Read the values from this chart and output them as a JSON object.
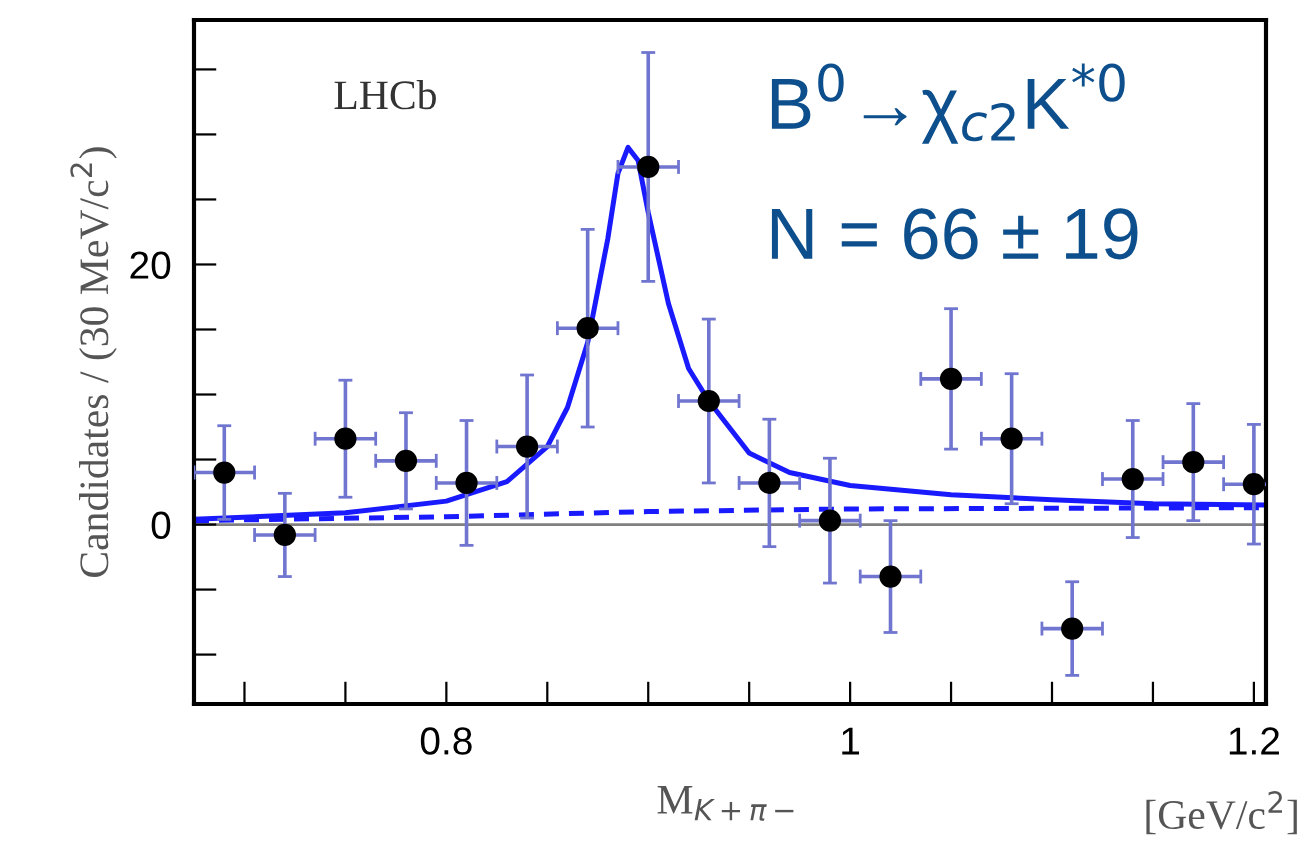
{
  "chart_data": {
    "type": "scatter",
    "xlabel": "M$_{K+π−}$",
    "ylabel": "Candidates / (30 MeV/c$^{2}$)",
    "xlim": [
      0.675,
      1.206
    ],
    "ylim": [
      -13.8,
      38.8
    ],
    "xticks": [
      {
        "value": 0.7,
        "label": null
      },
      {
        "value": 0.75,
        "label": null
      },
      0.8,
      {
        "value": 0.85,
        "label": null
      },
      {
        "value": 0.9,
        "label": null
      },
      {
        "value": 0.95,
        "label": null
      },
      1,
      {
        "value": 1.05,
        "label": null
      },
      {
        "value": 1.1,
        "label": null
      },
      {
        "value": 1.15,
        "label": null
      },
      1.2
    ],
    "yticks": [
      {
        "value": -10,
        "label": null
      },
      {
        "value": -5,
        "label": null
      },
      0,
      {
        "value": 5,
        "label": null
      },
      {
        "value": 10,
        "label": null
      },
      {
        "value": 15,
        "label": null
      },
      20,
      {
        "value": 25,
        "label": null
      },
      {
        "value": 30,
        "label": null
      },
      {
        "value": 35,
        "label": null
      }
    ],
    "grid": false,
    "legend": false,
    "series": [
      {
        "color": "#000000",
        "marker": "circle",
        "x": [
          0.69,
          0.72,
          0.75,
          0.78,
          0.81,
          0.84,
          0.87,
          0.9,
          0.93,
          0.96,
          0.99,
          1.02,
          1.05,
          1.08,
          1.11,
          1.14,
          1.17,
          1.2
        ],
        "values": [
          4.0,
          -0.8,
          6.6,
          4.9,
          3.2,
          6.0,
          15.1,
          27.5,
          9.5,
          3.2,
          0.3,
          -4.0,
          11.2,
          6.6,
          -8.0,
          3.5,
          4.8,
          3.1
        ],
        "errors": [
          3.6,
          3.2,
          4.5,
          3.7,
          4.8,
          5.5,
          7.6,
          8.8,
          6.3,
          4.9,
          4.8,
          4.3,
          5.4,
          5.0,
          3.6,
          4.5,
          4.5,
          4.6
        ],
        "xerrors": [
          0.015,
          0.015,
          0.015,
          0.015,
          0.015,
          0.015,
          0.015,
          0.015,
          0.015,
          0.015,
          0.015,
          0.015,
          0.015,
          0.015,
          0.015,
          0.015,
          0.015,
          0.015
        ]
      },
      {
        "type": "line",
        "color": "#1a1aff",
        "line_style": "solid",
        "x": [
          0.675,
          0.75,
          0.8,
          0.83,
          0.85,
          0.86,
          0.87,
          0.88,
          0.885,
          0.89,
          0.895,
          0.9,
          0.91,
          0.92,
          0.93,
          0.95,
          0.97,
          1.0,
          1.05,
          1.1,
          1.15,
          1.206
        ],
        "values": [
          0.4,
          0.9,
          1.8,
          3.3,
          6,
          9,
          14,
          22,
          27,
          29,
          28,
          24,
          17,
          12,
          9.5,
          5.5,
          4,
          3,
          2.3,
          1.9,
          1.6,
          1.5
        ]
      },
      {
        "type": "line",
        "color": "#1a1aff",
        "line_style": "dashed",
        "x": [
          0.675,
          0.8,
          0.9,
          1.0,
          1.206
        ],
        "values": [
          0.3,
          0.6,
          1.0,
          1.2,
          1.3
        ]
      }
    ],
    "ref_lines": [
      {
        "axis": "y",
        "value": 0,
        "color": "#808080",
        "line_style": "solid"
      }
    ],
    "annotations": [
      "LHCb",
      "B$^{0}$→χ$_{c2}$K$^{*0}$",
      "N = 66 ± 19",
      "[GeV/c$^{2}$]"
    ]
  }
}
